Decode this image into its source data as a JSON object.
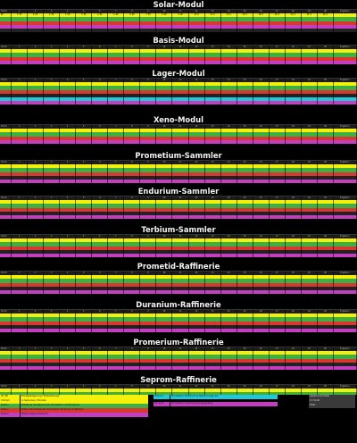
{
  "colors": {
    "yellow": "#f4f00a",
    "green": "#3cb043",
    "red": "#d8382f",
    "magenta": "#c43fc0",
    "cyan": "#20c8d8",
    "header": "#1c1c1c"
  },
  "modules": [
    {
      "title": "Solar-Modul"
    },
    {
      "title": "Basis-Modul"
    },
    {
      "title": "Lager-Modul"
    },
    {
      "title": "Xeno-Modul"
    },
    {
      "title": "Prometium-Sammler"
    },
    {
      "title": "Endurium-Sammler"
    },
    {
      "title": "Terbium-Sammler"
    },
    {
      "title": "Prometid-Raffinerie"
    },
    {
      "title": "Duranium-Raffinerie"
    },
    {
      "title": "Promerium-Raffinerie"
    },
    {
      "title": "Seprom-Raffinerie"
    }
  ],
  "table": {
    "first_header": "Stufe",
    "last_header": "Ergebnis",
    "levels": [
      "1",
      "2",
      "3",
      "4",
      "5",
      "6",
      "7",
      "8",
      "9",
      "10",
      "11",
      "12",
      "13",
      "14",
      "15",
      "16",
      "17",
      "18",
      "19",
      "20"
    ],
    "row_labels": [
      "EP",
      "Uridium",
      "Endurium",
      "Prometium",
      "Kosten"
    ]
  },
  "solar_row": {
    "label": "EP",
    "values": [
      "1.50",
      "2.00",
      "2.50",
      "3.00",
      "3.50",
      "4.00",
      "5.00",
      "6.00",
      "7.00",
      "8.00",
      "9.00",
      "10.0",
      "12.0",
      "14.0",
      "16.0",
      "18.0",
      "20.0",
      "22.0",
      "24.0",
      "26.0"
    ],
    "result": "-"
  },
  "legend": {
    "left": [
      {
        "key": "IK / EP",
        "text": "Ertragssteigerung / Kristallmenge"
      },
      {
        "key": "Uridium",
        "text": "in Sekunden / Minuten"
      },
      {
        "key": "Kosten",
        "text": "Erhaltung der Ressourcen Prometium und Endurium"
      },
      {
        "key": "Kosten",
        "text": "Kosten der Module bei Prometium, Endurium & Terbium"
      },
      {
        "key": "Kosten",
        "text": "Stufen Kosten (Uridium)"
      }
    ],
    "right": [
      {
        "key": "P.I.R.A.T",
        "text": "Prometium, Endurium & Terbium lager pro"
      },
      {
        "key": "Pro & En",
        "text": "Prometium- & Endurium-Lagergrösse"
      }
    ],
    "notes": [
      {
        "key": "Gesamt auf Stufe",
        "text": ""
      },
      {
        "key": "17.31.00",
        "text": ""
      },
      {
        "key": "Total:",
        "text": ""
      }
    ]
  }
}
